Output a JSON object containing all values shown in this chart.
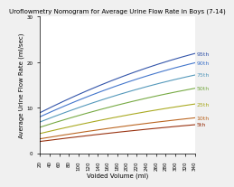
{
  "title": "Uroflowmetry Nomogram for Average Urine Flow Rate in Boys (7-14)",
  "xlabel": "Voided Volume (ml)",
  "ylabel": "Average Urine Flow Rate (ml/sec)",
  "xlim": [
    20,
    340
  ],
  "ylim": [
    0,
    30
  ],
  "xticks": [
    20,
    40,
    60,
    80,
    100,
    120,
    140,
    160,
    180,
    200,
    220,
    240,
    260,
    280,
    300,
    320,
    340
  ],
  "yticks": [
    0,
    10,
    20,
    30
  ],
  "percentiles": [
    "95th",
    "90th",
    "75th",
    "50th",
    "25th",
    "10th",
    "5th"
  ],
  "percentile_colors": [
    "#3355aa",
    "#4477cc",
    "#5599bb",
    "#77aa44",
    "#aaaa22",
    "#bb6622",
    "#993311"
  ],
  "background_color": "#f0f0f0",
  "title_fontsize": 5.0,
  "label_fontsize": 5.0,
  "tick_fontsize": 4.0,
  "annot_fontsize": 4.5,
  "curve_params": {
    "95th": [
      7.8,
      0.055,
      -4e-05
    ],
    "90th": [
      7.0,
      0.05,
      -3.6e-05
    ],
    "75th": [
      6.0,
      0.043,
      -3e-05
    ],
    "50th": [
      5.0,
      0.035,
      -2.3e-05
    ],
    "25th": [
      3.8,
      0.026,
      -1.6e-05
    ],
    "10th": [
      2.8,
      0.018,
      -1e-05
    ],
    "5th": [
      2.3,
      0.014,
      -7e-06
    ]
  }
}
